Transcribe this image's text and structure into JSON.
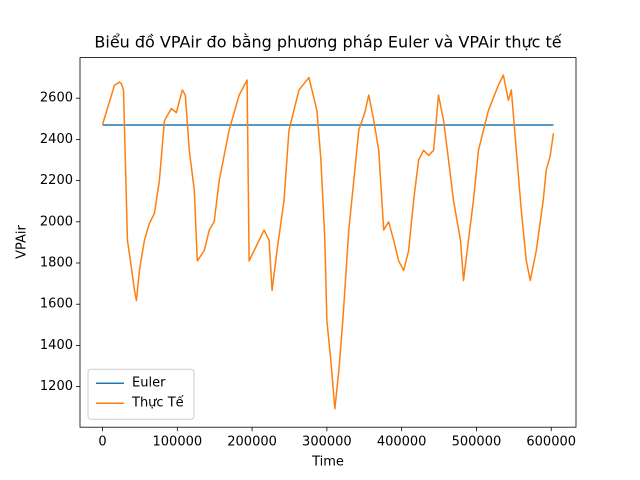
{
  "chart_data": {
    "type": "line",
    "title": "Biểu đồ VPAir đo bằng phương pháp Euler và VPAir thực tế",
    "x_label": "Time",
    "y_label": "VPAir",
    "xlim": [
      -30150,
      633150
    ],
    "ylim": [
      1003,
      2797
    ],
    "xticks": [
      0,
      100000,
      200000,
      300000,
      400000,
      500000,
      600000
    ],
    "yticks": [
      1200,
      1400,
      1600,
      1800,
      2000,
      2200,
      2400,
      2600
    ],
    "legend": "lower left",
    "series": [
      {
        "name": "Euler",
        "color": "#1f77b4",
        "x": [
          0,
          603000
        ],
        "values": [
          2470,
          2470
        ]
      },
      {
        "name": "Thực Tế",
        "color": "#ff7f0e",
        "x": [
          0,
          16000,
          22700,
          25300,
          28000,
          33300,
          37300,
          42700,
          45300,
          49300,
          56000,
          62700,
          69300,
          76000,
          82700,
          92000,
          98700,
          106700,
          110700,
          116000,
          122700,
          126700,
          136000,
          142700,
          149300,
          156000,
          169300,
          182700,
          193300,
          196000,
          202700,
          209300,
          216000,
          222700,
          226700,
          233300,
          242700,
          249300,
          262700,
          276000,
          280000,
          286700,
          292000,
          297300,
          300000,
          305300,
          310700,
          316000,
          321300,
          329300,
          336000,
          342700,
          350700,
          356000,
          362700,
          369300,
          376000,
          382700,
          389300,
          396000,
          402700,
          409300,
          416000,
          422700,
          429300,
          436000,
          442700,
          449300,
          456000,
          462700,
          469300,
          478700,
          482700,
          489300,
          496000,
          502700,
          516000,
          529300,
          536000,
          542700,
          546700,
          553300,
          560000,
          566700,
          572000,
          580000,
          589300,
          593300,
          598700,
          603000
        ],
        "values": [
          2473,
          2663,
          2678,
          2670,
          2640,
          1910,
          1810,
          1667,
          1618,
          1764,
          1910,
          1993,
          2040,
          2200,
          2490,
          2550,
          2530,
          2640,
          2615,
          2347,
          2153,
          1810,
          1860,
          1960,
          2000,
          2200,
          2445,
          2615,
          2688,
          1810,
          1860,
          1910,
          1960,
          1910,
          1667,
          1860,
          2104,
          2445,
          2640,
          2700,
          2640,
          2540,
          2300,
          1910,
          1520,
          1326,
          1093,
          1278,
          1520,
          1960,
          2200,
          2445,
          2530,
          2615,
          2493,
          2347,
          1960,
          2000,
          1910,
          1810,
          1764,
          1860,
          2104,
          2300,
          2347,
          2322,
          2347,
          2615,
          2493,
          2300,
          2104,
          1910,
          1715,
          1910,
          2104,
          2347,
          2540,
          2663,
          2712,
          2590,
          2640,
          2347,
          2055,
          1810,
          1715,
          1860,
          2104,
          2250,
          2322,
          2430
        ]
      }
    ]
  }
}
